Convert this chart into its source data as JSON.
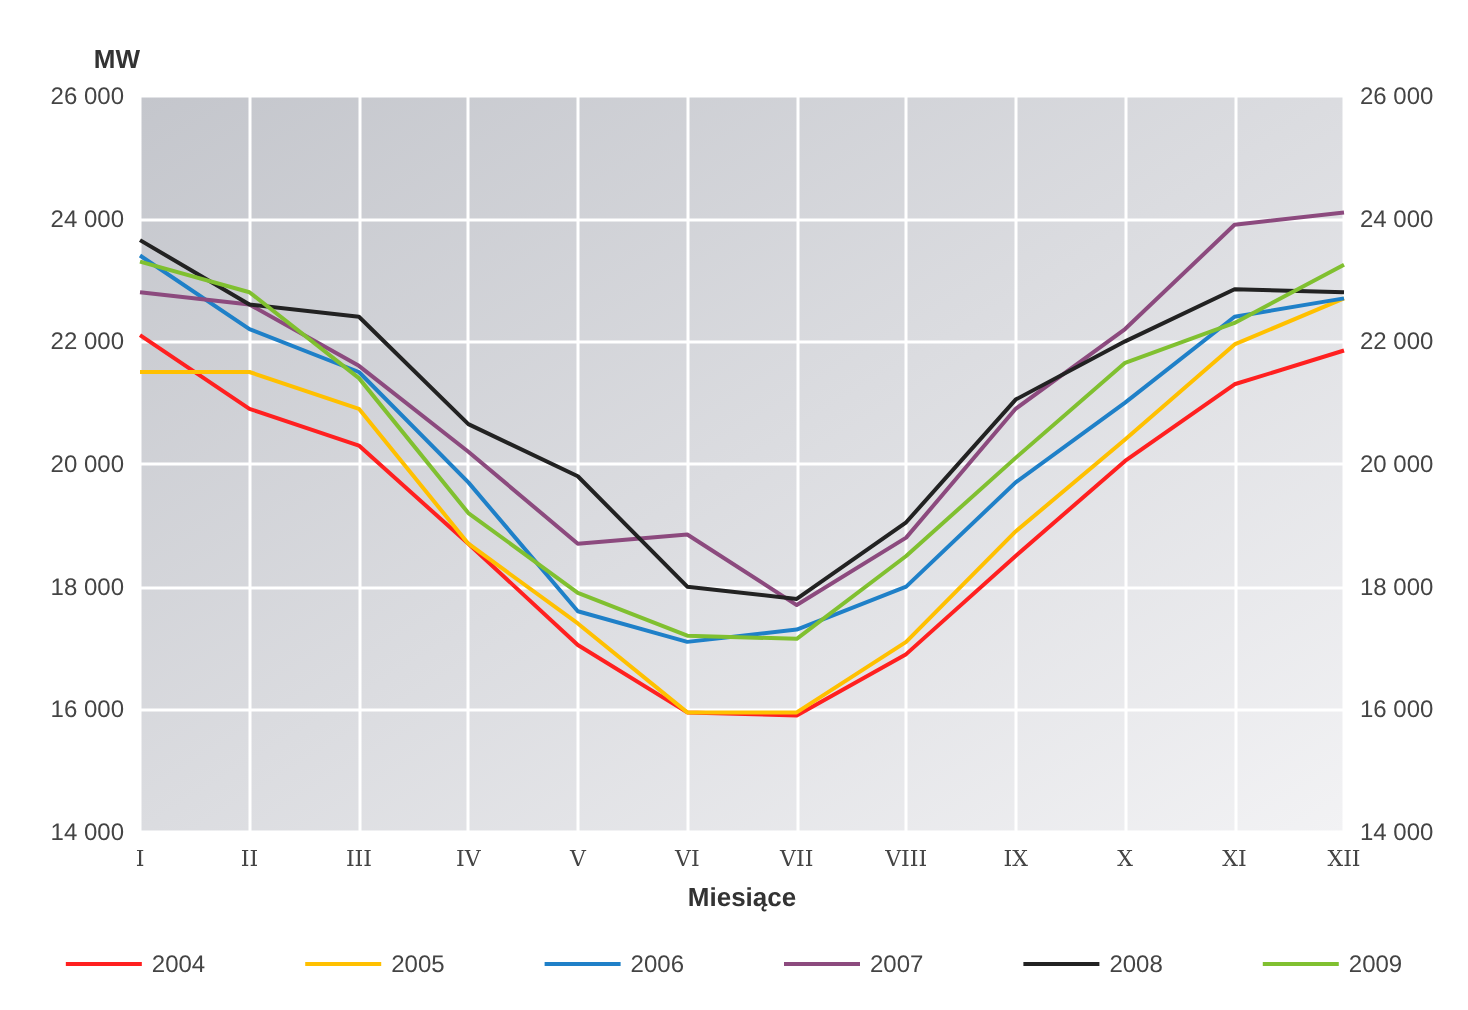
{
  "chart_data": {
    "type": "line",
    "ylabel": "MW",
    "xlabel": "Miesiące",
    "categories": [
      "I",
      "II",
      "III",
      "IV",
      "V",
      "VI",
      "VII",
      "VIII",
      "IX",
      "X",
      "XI",
      "XII"
    ],
    "series": [
      {
        "name": "2004",
        "color": "#ff2020",
        "values": [
          22100,
          20900,
          20300,
          18700,
          17050,
          15950,
          15900,
          16900,
          18500,
          20050,
          21300,
          21850
        ]
      },
      {
        "name": "2005",
        "color": "#ffc000",
        "values": [
          21500,
          21500,
          20900,
          18700,
          17400,
          15950,
          15950,
          17100,
          18900,
          20400,
          21950,
          22700
        ]
      },
      {
        "name": "2006",
        "color": "#1f80c8",
        "values": [
          23400,
          22200,
          21500,
          19700,
          17600,
          17100,
          17300,
          18000,
          19700,
          21000,
          22400,
          22700
        ]
      },
      {
        "name": "2007",
        "color": "#8c4a7e",
        "values": [
          22800,
          22600,
          21600,
          20200,
          18700,
          18850,
          17700,
          18800,
          20900,
          22200,
          23900,
          24100
        ]
      },
      {
        "name": "2008",
        "color": "#222222",
        "values": [
          23650,
          22600,
          22400,
          20650,
          19800,
          18000,
          17800,
          19050,
          21050,
          22000,
          22850,
          22800
        ]
      },
      {
        "name": "2009",
        "color": "#80c030",
        "values": [
          23300,
          22800,
          21400,
          19200,
          17900,
          17200,
          17150,
          18500,
          20100,
          21650,
          22300,
          23250
        ]
      }
    ],
    "ylim": [
      14000,
      26000
    ],
    "yticks": [
      {
        "value": 14000,
        "label": "14 000"
      },
      {
        "value": 16000,
        "label": "16 000"
      },
      {
        "value": 18000,
        "label": "18 000"
      },
      {
        "value": 20000,
        "label": "20 000"
      },
      {
        "value": 22000,
        "label": "22 000"
      },
      {
        "value": 24000,
        "label": "24 000"
      },
      {
        "value": 26000,
        "label": "26 000"
      }
    ],
    "y2lim": [
      14000,
      26000
    ],
    "y2ticks": [
      {
        "value": 14000,
        "label": "14 000"
      },
      {
        "value": 16000,
        "label": "16 000"
      },
      {
        "value": 18000,
        "label": "18 000"
      },
      {
        "value": 20000,
        "label": "20 000"
      },
      {
        "value": 22000,
        "label": "22 000"
      },
      {
        "value": 24000,
        "label": "24 000"
      },
      {
        "value": 26000,
        "label": "26 000"
      }
    ],
    "grid": true,
    "legend": "bottom",
    "marker": "none",
    "line_style": "solid"
  }
}
